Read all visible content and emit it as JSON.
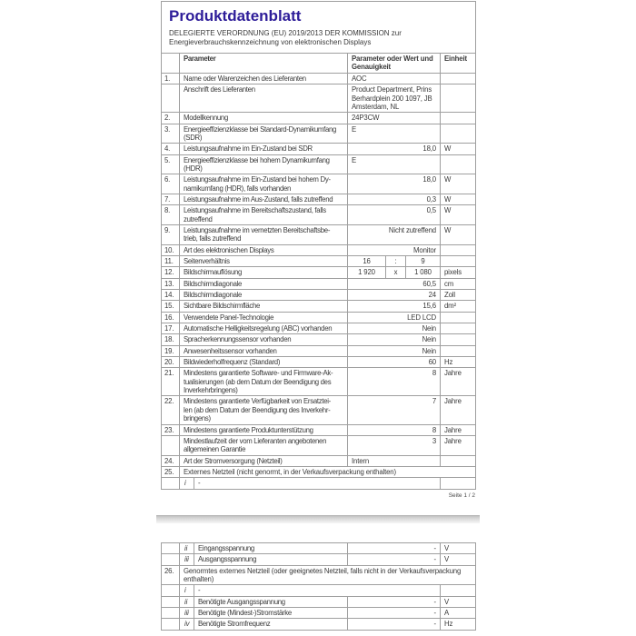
{
  "colors": {
    "title": "#2e1d99",
    "border": "#9f9f9f",
    "text": "#3a3a3a",
    "separator": "#d9d9d9"
  },
  "page1": {
    "title": "Produktdatenblatt",
    "subtitle": "DELEGIERTE VERORDNUNG (EU) 2019/2013 DER KOMMISSION zur\nEnergieverbrauchskennzeichnung von elektronischen Displays",
    "header": {
      "param": "Parameter",
      "value": "Parameter oder Wert und\nGenauigkeit",
      "unit": "Einheit"
    },
    "rows": [
      {
        "num": "1.",
        "label": "Name oder Warenzeichen des Lieferanten",
        "value": "AOC",
        "unit": "",
        "align": "left"
      },
      {
        "num": "",
        "label": "Anschrift des Lieferanten",
        "value": "Product Department, Prins\nBerhardplein 200 1097, JB\nAmsterdam, NL",
        "unit": "",
        "align": "left"
      },
      {
        "num": "2.",
        "label": "Modellkennung",
        "value": "24P3CW",
        "unit": "",
        "align": "left"
      },
      {
        "num": "3.",
        "label": "Energieeffizienzklasse bei Standard-Dynamikumfang\n(SDR)",
        "value": "E",
        "unit": "",
        "align": "left"
      },
      {
        "num": "4.",
        "label": "Leistungsaufnahme im Ein-Zustand bei SDR",
        "value": "18,0",
        "unit": "W",
        "align": "right"
      },
      {
        "num": "5.",
        "label": "Energieeffizienzklasse bei hohem Dynamikumfang\n(HDR)",
        "value": "E",
        "unit": "",
        "align": "left"
      },
      {
        "num": "6.",
        "label": "Leistungsaufnahme im Ein-Zustand bei hohem Dy-\nnamikumfang (HDR), falls vorhanden",
        "value": "18,0",
        "unit": "W",
        "align": "right"
      },
      {
        "num": "7.",
        "label": "Leistungsaufnahme im Aus-Zustand, falls zutreffend",
        "value": "0,3",
        "unit": "W",
        "align": "right"
      },
      {
        "num": "8.",
        "label": "Leistungsaufnahme im Bereitschaftszustand, falls\nzutreffend",
        "value": "0,5",
        "unit": "W",
        "align": "right"
      },
      {
        "num": "9.",
        "label": "Leistungsaufnahme im vernetzten Bereitschaftsbe-\ntrieb, falls zutreffend",
        "value": "Nicht zutreffend",
        "unit": "W",
        "align": "right"
      },
      {
        "num": "10.",
        "label": "Art des elektronischen Displays",
        "value": "Monitor",
        "unit": "",
        "align": "right"
      },
      {
        "num": "11.",
        "label": "Seitenverhältnis",
        "split": [
          "16",
          ":",
          "9"
        ],
        "unit": ""
      },
      {
        "num": "12.",
        "label": "Bildschirmauflösung",
        "split": [
          "1 920",
          "x",
          "1 080"
        ],
        "unit": "pixels"
      },
      {
        "num": "13.",
        "label": "Bildschirmdiagonale",
        "value": "60,5",
        "unit": "cm",
        "align": "right"
      },
      {
        "num": "14.",
        "label": "Bildschirmdiagonale",
        "value": "24",
        "unit": "Zoll",
        "align": "right"
      },
      {
        "num": "15.",
        "label": "Sichtbare Bildschirmfläche",
        "value": "15,6",
        "unit": "dm²",
        "align": "right"
      },
      {
        "num": "16.",
        "label": "Verwendete Panel-Technologie",
        "value": "LED LCD",
        "unit": "",
        "align": "right"
      },
      {
        "num": "17.",
        "label": "Automatische Helligkeitsregelung (ABC) vorhanden",
        "value": "Nein",
        "unit": "",
        "align": "right"
      },
      {
        "num": "18.",
        "label": "Spracherkennungssensor vorhanden",
        "value": "Nein",
        "unit": "",
        "align": "right"
      },
      {
        "num": "19.",
        "label": "Anwesenheitssensor vorhanden",
        "value": "Nein",
        "unit": "",
        "align": "right"
      },
      {
        "num": "20.",
        "label": "Bildwiederholfrequenz (Standard)",
        "value": "60",
        "unit": "Hz",
        "align": "right"
      },
      {
        "num": "21.",
        "label": "Mindestens garantierte Software- und Firmware-Ak-\ntualisierungen (ab dem Datum der Beendigung des\nInverkehrbringens)",
        "value": "8",
        "unit": "Jahre",
        "align": "right"
      },
      {
        "num": "22.",
        "label": "Mindestens garantierte Verfügbarkeit von Ersatztei-\nlen (ab dem Datum der Beendigung des Inverkehr-\nbringens)",
        "value": "7",
        "unit": "Jahre",
        "align": "right"
      },
      {
        "num": "23.",
        "label": "Mindestens garantierte Produktunterstützung",
        "value": "8",
        "unit": "Jahre",
        "align": "right"
      },
      {
        "num": "",
        "label": "Mindestlaufzeit der vom Lieferanten angebotenen\nallgemeinen Garantie",
        "value": "3",
        "unit": "Jahre",
        "align": "right"
      },
      {
        "num": "24.",
        "label": "Art der Stromversorgung (Netzteil)",
        "value": "Intern",
        "unit": "",
        "align": "left"
      },
      {
        "num": "25.",
        "merged": "Externes Netzteil (nicht genormt, in der Verkaufsverpackung enthalten)"
      },
      {
        "num": "",
        "letter": "i",
        "dash": "-"
      }
    ],
    "footer": "Seite 1 / 2"
  },
  "page2": {
    "rows": [
      {
        "num": "",
        "letter": "ii",
        "label": "Eingangsspannung",
        "value": "-",
        "unit": "V",
        "align": "right"
      },
      {
        "num": "",
        "letter": "iii",
        "label": "Ausgangsspannung",
        "value": "-",
        "unit": "V",
        "align": "right"
      },
      {
        "num": "26.",
        "merged": "Genormtes externes Netzteil (oder geeignetes Netzteil, falls nicht in der Verkaufsverpackung\nenthalten)"
      },
      {
        "num": "",
        "letter": "i",
        "dash": "-"
      },
      {
        "num": "",
        "letter": "ii",
        "label": "Benötigte Ausgangsspannung",
        "value": "-",
        "unit": "V",
        "align": "right"
      },
      {
        "num": "",
        "letter": "iii",
        "label": "Benötigte (Mindest-)Stromstärke",
        "value": "-",
        "unit": "A",
        "align": "right"
      },
      {
        "num": "",
        "letter": "iv",
        "label": "Benötigte Stromfrequenz",
        "value": "-",
        "unit": "Hz",
        "align": "right"
      }
    ]
  }
}
